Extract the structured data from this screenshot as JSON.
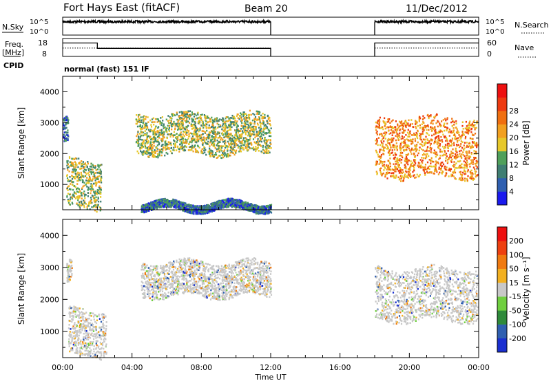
{
  "header": {
    "station": "Fort Hays East (fitACF)",
    "beam": "Beam 20",
    "date": "11/Dec/2012"
  },
  "left_labels": {
    "nsky": "N.Sky",
    "freq_line1": "Freq.",
    "freq_line2": "[MHz]",
    "cpid": "CPID"
  },
  "right_labels": {
    "nsearch": "N.Search",
    "nave": "Nave"
  },
  "cpid_text": "normal (fast) 151 IF",
  "chart_data": [
    {
      "type": "line",
      "panel": "noise",
      "ylabel": "N.Sky",
      "y2label": "N.Search",
      "yticks": [
        "10^5",
        "10^0"
      ],
      "y2ticks": [
        "10^5",
        "10^0"
      ],
      "segments": [
        {
          "x": [
            "00:00",
            "12:00"
          ],
          "level": 0.75
        },
        {
          "x": [
            "18:00",
            "24:00"
          ],
          "level": 0.75
        }
      ],
      "gap": [
        "12:00",
        "18:00"
      ]
    },
    {
      "type": "line",
      "panel": "frequency",
      "ylabel": "Freq. [MHz]",
      "y2label": "Nave",
      "yticks": [
        "18",
        "8"
      ],
      "y2ticks": [
        "60",
        "0"
      ],
      "ylim": [
        8,
        18
      ],
      "y2lim": [
        0,
        60
      ],
      "series": [
        {
          "line": "solid",
          "points": [
            [
              "00:00",
              15.5
            ],
            [
              "02:00",
              15.5
            ],
            [
              "02:00",
              12.5
            ],
            [
              "12:00",
              12.5
            ],
            [
              "18:00",
              15.5
            ],
            [
              "24:00",
              15.5
            ]
          ]
        },
        {
          "line": "dotted",
          "points": [
            [
              "00:00",
              28
            ],
            [
              "12:00",
              28
            ],
            [
              "18:00",
              28
            ],
            [
              "24:00",
              28
            ]
          ]
        }
      ],
      "gap": [
        "12:00",
        "18:00"
      ]
    },
    {
      "type": "heatmap",
      "panel": "power",
      "ylabel": "Slant Range [km]",
      "yticks": [
        "1000",
        "2000",
        "3000",
        "4000"
      ],
      "ylim": [
        180,
        4500
      ],
      "colorbar": {
        "label": "Power [dB]",
        "ticks": [
          "4",
          "8",
          "12",
          "16",
          "20",
          "24",
          "28"
        ],
        "colors": [
          "#1a1aee",
          "#2f5fb0",
          "#3f7e72",
          "#4fa05a",
          "#e7c82a",
          "#f2a020",
          "#f06f10",
          "#ee3a10",
          "#ee1010"
        ]
      },
      "echo_regions": [
        {
          "t": [
            0.0,
            0.3
          ],
          "range": [
            2400,
            3200
          ],
          "power": 8
        },
        {
          "t": [
            0.2,
            2.2
          ],
          "range": [
            250,
            1800
          ],
          "power": 14
        },
        {
          "t": [
            4.2,
            12.0
          ],
          "range": [
            2000,
            3300
          ],
          "power": 16
        },
        {
          "t": [
            18.0,
            23.9
          ],
          "range": [
            1250,
            3200
          ],
          "power": 22
        },
        {
          "t": [
            4.5,
            12.0
          ],
          "range": [
            180,
            450
          ],
          "power": 6
        }
      ]
    },
    {
      "type": "heatmap",
      "panel": "velocity",
      "ylabel": "Slant Range [km]",
      "yticks": [
        "1000",
        "2000",
        "3000",
        "4000"
      ],
      "ylim": [
        180,
        4500
      ],
      "colorbar": {
        "label": "Velocity [m s⁻¹]",
        "ticks": [
          "200",
          "100",
          "50",
          "15",
          "-15",
          "-50",
          "-100",
          "-200"
        ],
        "colors": [
          "#1a2fd0",
          "#2f5fb0",
          "#2f8a3a",
          "#6fcf3f",
          "#c8c8c8",
          "#f2b020",
          "#f07a10",
          "#ee4010",
          "#ee1010"
        ]
      },
      "echo_regions": [
        {
          "t": [
            0.2,
            0.5
          ],
          "range": [
            2500,
            3200
          ],
          "velocity": 0
        },
        {
          "t": [
            0.3,
            2.5
          ],
          "range": [
            250,
            1700
          ],
          "velocity": 0
        },
        {
          "t": [
            4.5,
            12.0
          ],
          "range": [
            2100,
            3200
          ],
          "velocity": 0
        },
        {
          "t": [
            18.0,
            23.9
          ],
          "range": [
            1350,
            3000
          ],
          "velocity": 0
        }
      ]
    }
  ],
  "xaxis": {
    "label": "Time UT",
    "ticks": [
      "00:00",
      "04:00",
      "08:00",
      "12:00",
      "16:00",
      "20:00",
      "00:00"
    ]
  }
}
